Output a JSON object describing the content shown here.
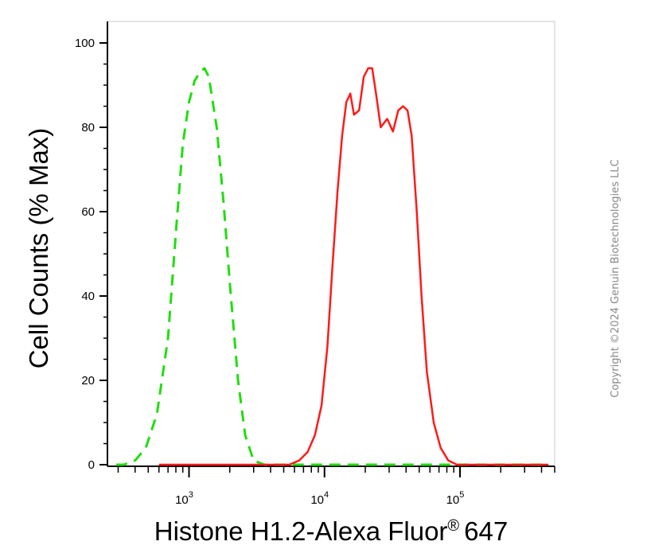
{
  "chart_data": {
    "type": "line",
    "xlabel": "Histone H1.2-Alexa Fluor",
    "xlabel_superscript": "®",
    "xlabel_suffix": "647",
    "ylabel": "Cell Counts (% Max)",
    "x_scale": "log",
    "xlim": [
      250,
      500000
    ],
    "ylim": [
      0,
      100
    ],
    "y_ticks": [
      0,
      20,
      40,
      60,
      80,
      100
    ],
    "x_ticks": [
      {
        "value": 1000,
        "base": "10",
        "exp": "3"
      },
      {
        "value": 10000,
        "base": "10",
        "exp": "4"
      },
      {
        "value": 100000,
        "base": "10",
        "exp": "5"
      }
    ],
    "grid": false,
    "series": [
      {
        "color": "#22dd11",
        "dash": true,
        "points": [
          [
            290,
            0
          ],
          [
            330,
            0
          ],
          [
            400,
            1
          ],
          [
            480,
            4
          ],
          [
            580,
            12
          ],
          [
            700,
            30
          ],
          [
            800,
            55
          ],
          [
            900,
            76
          ],
          [
            1000,
            86
          ],
          [
            1100,
            91
          ],
          [
            1200,
            93
          ],
          [
            1300,
            94
          ],
          [
            1400,
            92
          ],
          [
            1600,
            80
          ],
          [
            1800,
            62
          ],
          [
            2000,
            43
          ],
          [
            2300,
            20
          ],
          [
            2600,
            7
          ],
          [
            3000,
            1
          ],
          [
            3600,
            0
          ],
          [
            5000,
            0
          ],
          [
            20000,
            0
          ],
          [
            100000,
            0
          ],
          [
            450000,
            0
          ]
        ]
      },
      {
        "color": "#ff1a1a",
        "dash": false,
        "points": [
          [
            600,
            0
          ],
          [
            2000,
            0
          ],
          [
            4000,
            0
          ],
          [
            5500,
            0
          ],
          [
            6500,
            1
          ],
          [
            7500,
            3
          ],
          [
            8500,
            7
          ],
          [
            9500,
            14
          ],
          [
            10500,
            28
          ],
          [
            11500,
            48
          ],
          [
            12500,
            65
          ],
          [
            13500,
            78
          ],
          [
            14500,
            86
          ],
          [
            15500,
            88
          ],
          [
            16500,
            83
          ],
          [
            18000,
            84
          ],
          [
            19500,
            92
          ],
          [
            21000,
            94
          ],
          [
            22500,
            94
          ],
          [
            24000,
            88
          ],
          [
            26000,
            80
          ],
          [
            29000,
            82
          ],
          [
            32000,
            79
          ],
          [
            35000,
            84
          ],
          [
            38000,
            85
          ],
          [
            41000,
            84
          ],
          [
            44000,
            78
          ],
          [
            48000,
            60
          ],
          [
            52000,
            40
          ],
          [
            57000,
            22
          ],
          [
            64000,
            10
          ],
          [
            72000,
            4
          ],
          [
            82000,
            1
          ],
          [
            95000,
            0
          ],
          [
            150000,
            0
          ],
          [
            450000,
            0
          ]
        ]
      }
    ]
  },
  "copyright": "Copyright ©2024 Genuin Biotechnologies LLC"
}
